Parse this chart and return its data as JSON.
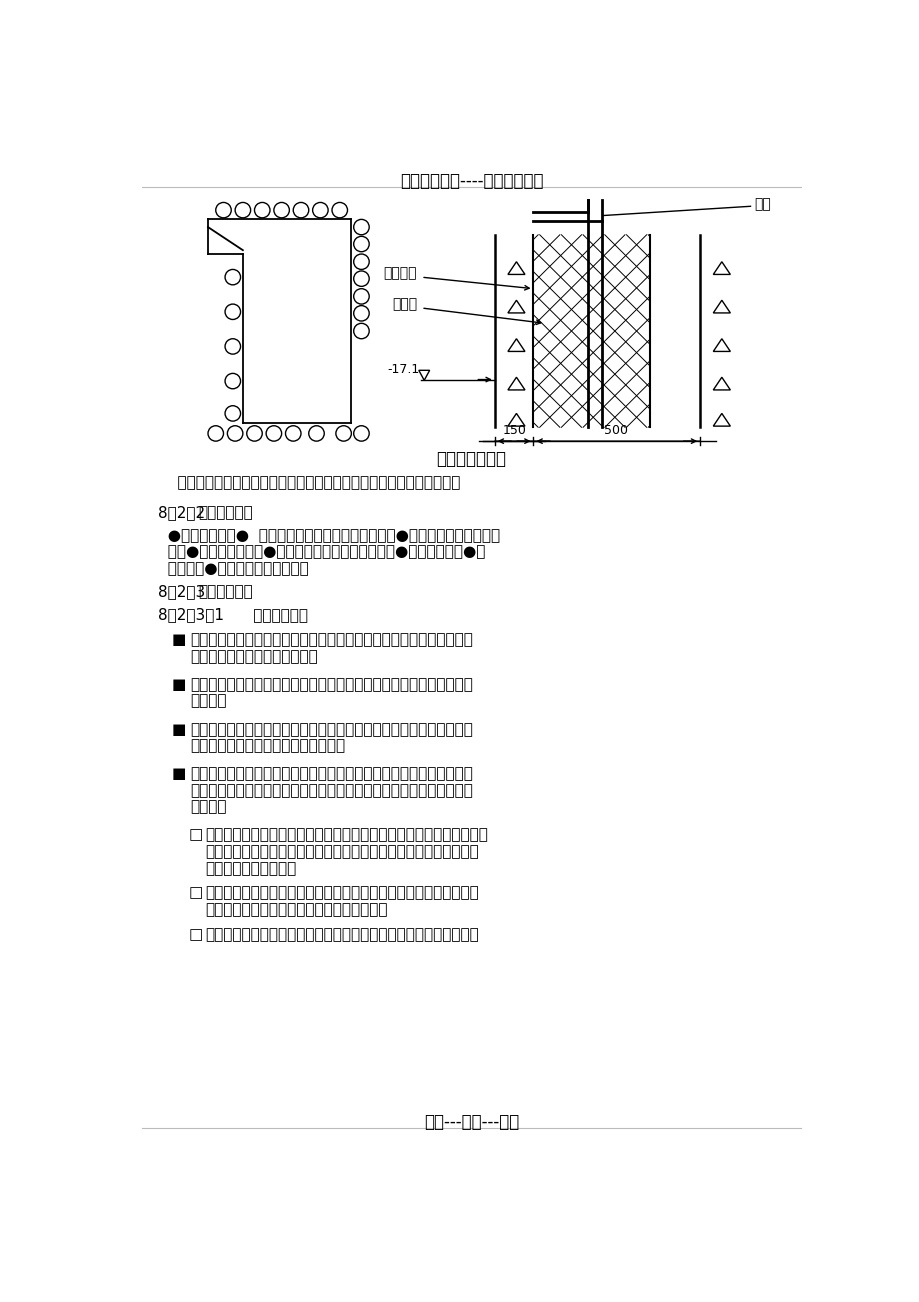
{
  "title_header": "精选优质文档----倾情为你奉上",
  "footer": "专心---专注---专业",
  "diagram_title": "管井布置示意图",
  "intro_text": "    此方案仅供业主参考，以下监理控制要点及实施细则是据此而编制的。",
  "section_822_prefix": "8．2．2  ",
  "section_822_bold": "监理控制要点",
  "section_822_lines": [
    "  ●工程定位测量●  施工前深基坑设计方案论证、审查●深基坑施工方案论证、",
    "  审查●围护灌注桩检查●锚杆施工张拉过程及拉拔试验●边坡变形监测●地",
    "  下水控制●基坑内作业面宽度控制"
  ],
  "section_823_prefix": "8．2．3  ",
  "section_823_bold": "监理实施细则",
  "section_8231": "8．2．3．1      事前控制措施",
  "bullets": [
    [
      "监理工程师应认真研究地质报告，熟悉现场，为制定监理细则和审查设",
      "计、施工方案建立第一手资料；"
    ],
    [
      "监理工程师和承包商应参加工程定位控制点交点工作，并要求承包商做",
      "好保护。"
    ],
    [
      "挖土前，监理工程师应协助业主向承包商提供地下障碍物图纸及有关交",
      "底，做好记录，以避免造成责任事故。"
    ],
    [
      "监理工程师应组织或协助业主组织深基坑设计方案的论证、审查。支护",
      "设计方案的制定依据安全性和经济性相结合的原则，为此应注意以下几",
      "个方面："
    ]
  ],
  "sub_bullets": [
    [
      "应确定深基坑合理的使用期（与施工同期及资金到为相关联），使用期",
      "长则设计安全度高，引起造价提高，但不能为节约造价而采取降低设",
      "计安全度的短期行为。"
    ],
    [
      "现场水文地质对支护体系的影响要进行认真评估，如要考虑到地下水",
      "对土体的渗透，使锚杆能否达到预期效果等。"
    ],
    [
      "地下水的控制。星海湾地区地下水位较高且土质松散，可能形成基坑"
    ]
  ],
  "background_color": "#ffffff"
}
